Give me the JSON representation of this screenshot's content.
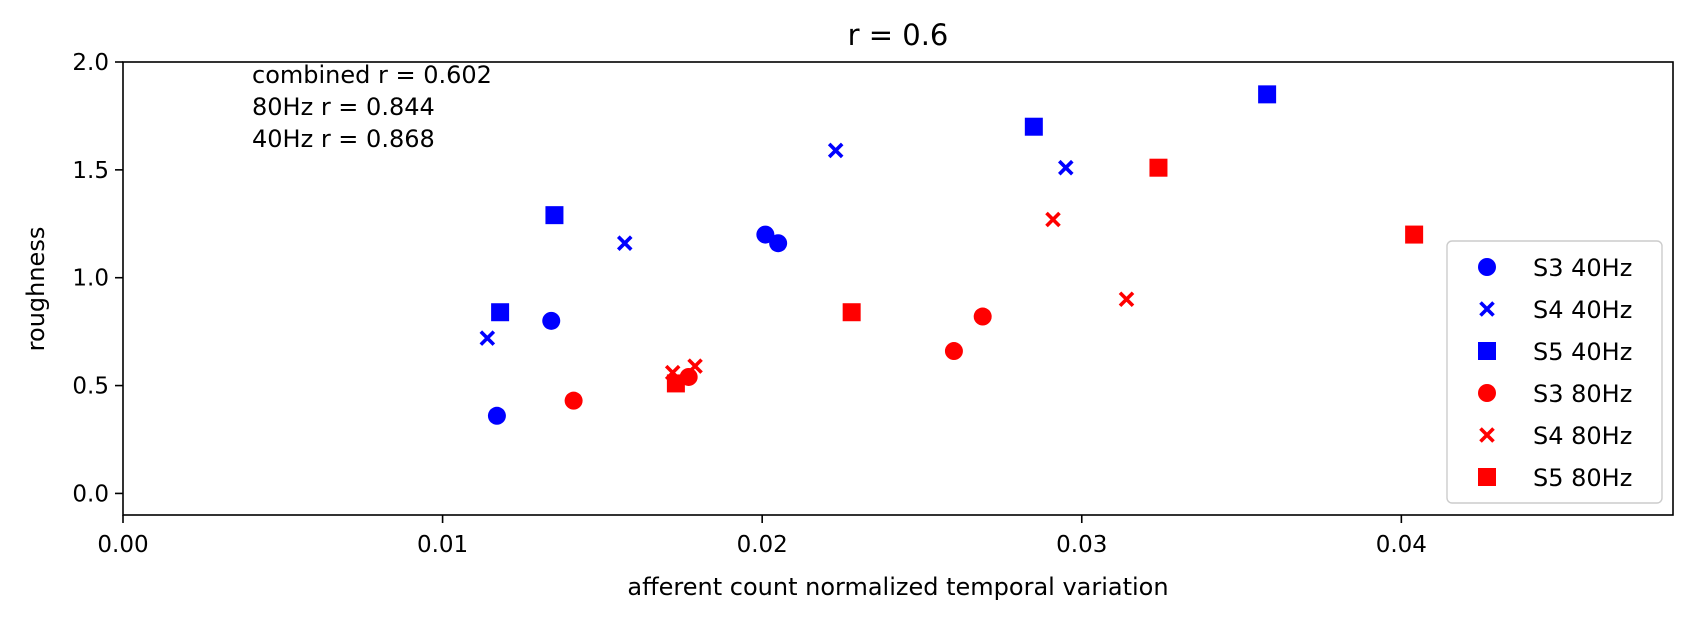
{
  "chart_data": {
    "type": "scatter",
    "title": "r = 0.6",
    "xlabel": "afferent count normalized temporal variation",
    "ylabel": "roughness",
    "xlim": [
      0,
      0.0485
    ],
    "ylim": [
      -0.1,
      2.0
    ],
    "x_ticks": [
      "0.00",
      "0.01",
      "0.02",
      "0.03",
      "0.04"
    ],
    "y_ticks": [
      "0.0",
      "0.5",
      "1.0",
      "1.5",
      "2.0"
    ],
    "grid": false,
    "legend_position": "lower-right",
    "annotations": [
      "combined r = 0.602",
      "80Hz r = 0.844",
      "40Hz r = 0.868"
    ],
    "series": [
      {
        "name": "S3 40Hz",
        "marker": "circle",
        "color": "#0000ff",
        "points": [
          [
            0.0117,
            0.36
          ],
          [
            0.0134,
            0.8
          ],
          [
            0.0201,
            1.2
          ],
          [
            0.0205,
            1.16
          ]
        ]
      },
      {
        "name": "S4 40Hz",
        "marker": "x",
        "color": "#0000ff",
        "points": [
          [
            0.0114,
            0.72
          ],
          [
            0.0157,
            1.16
          ],
          [
            0.0223,
            1.59
          ],
          [
            0.0295,
            1.51
          ]
        ]
      },
      {
        "name": "S5 40Hz",
        "marker": "square",
        "color": "#0000ff",
        "points": [
          [
            0.0118,
            0.84
          ],
          [
            0.0135,
            1.29
          ],
          [
            0.0285,
            1.7
          ],
          [
            0.0358,
            1.85
          ]
        ]
      },
      {
        "name": "S3 80Hz",
        "marker": "circle",
        "color": "#ff0000",
        "points": [
          [
            0.0141,
            0.43
          ],
          [
            0.0177,
            0.54
          ],
          [
            0.026,
            0.66
          ],
          [
            0.0269,
            0.82
          ]
        ]
      },
      {
        "name": "S4 80Hz",
        "marker": "x",
        "color": "#ff0000",
        "points": [
          [
            0.0172,
            0.56
          ],
          [
            0.0179,
            0.59
          ],
          [
            0.0291,
            1.27
          ],
          [
            0.0314,
            0.9
          ]
        ]
      },
      {
        "name": "S5 80Hz",
        "marker": "square",
        "color": "#ff0000",
        "points": [
          [
            0.0173,
            0.51
          ],
          [
            0.0228,
            0.84
          ],
          [
            0.0324,
            1.51
          ],
          [
            0.0404,
            1.2
          ]
        ]
      }
    ]
  }
}
